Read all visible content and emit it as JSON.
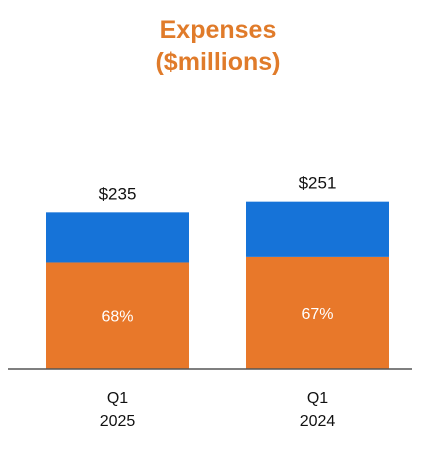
{
  "colors": {
    "title": "#e07b2a",
    "top_segment": "#1673d8",
    "bottom_segment": "#e8782a",
    "axis": "#555555"
  },
  "chart_data": {
    "type": "bar",
    "stacked": true,
    "title": [
      "Expenses",
      "($millions)"
    ],
    "categories": [
      {
        "line1": "Q1",
        "line2": "2025"
      },
      {
        "line1": "Q1",
        "line2": "2024"
      }
    ],
    "totals": [
      235,
      251
    ],
    "total_labels": [
      "$235",
      "$251"
    ],
    "segments": [
      {
        "color": "#e8782a",
        "share": [
          0.68,
          0.67
        ],
        "labels": [
          "68%",
          "67%"
        ]
      },
      {
        "color": "#1673d8",
        "share": [
          0.32,
          0.33
        ],
        "labels": [
          "",
          ""
        ]
      }
    ],
    "ylim": [
      0,
      900
    ],
    "grid": false,
    "legend": "none"
  }
}
